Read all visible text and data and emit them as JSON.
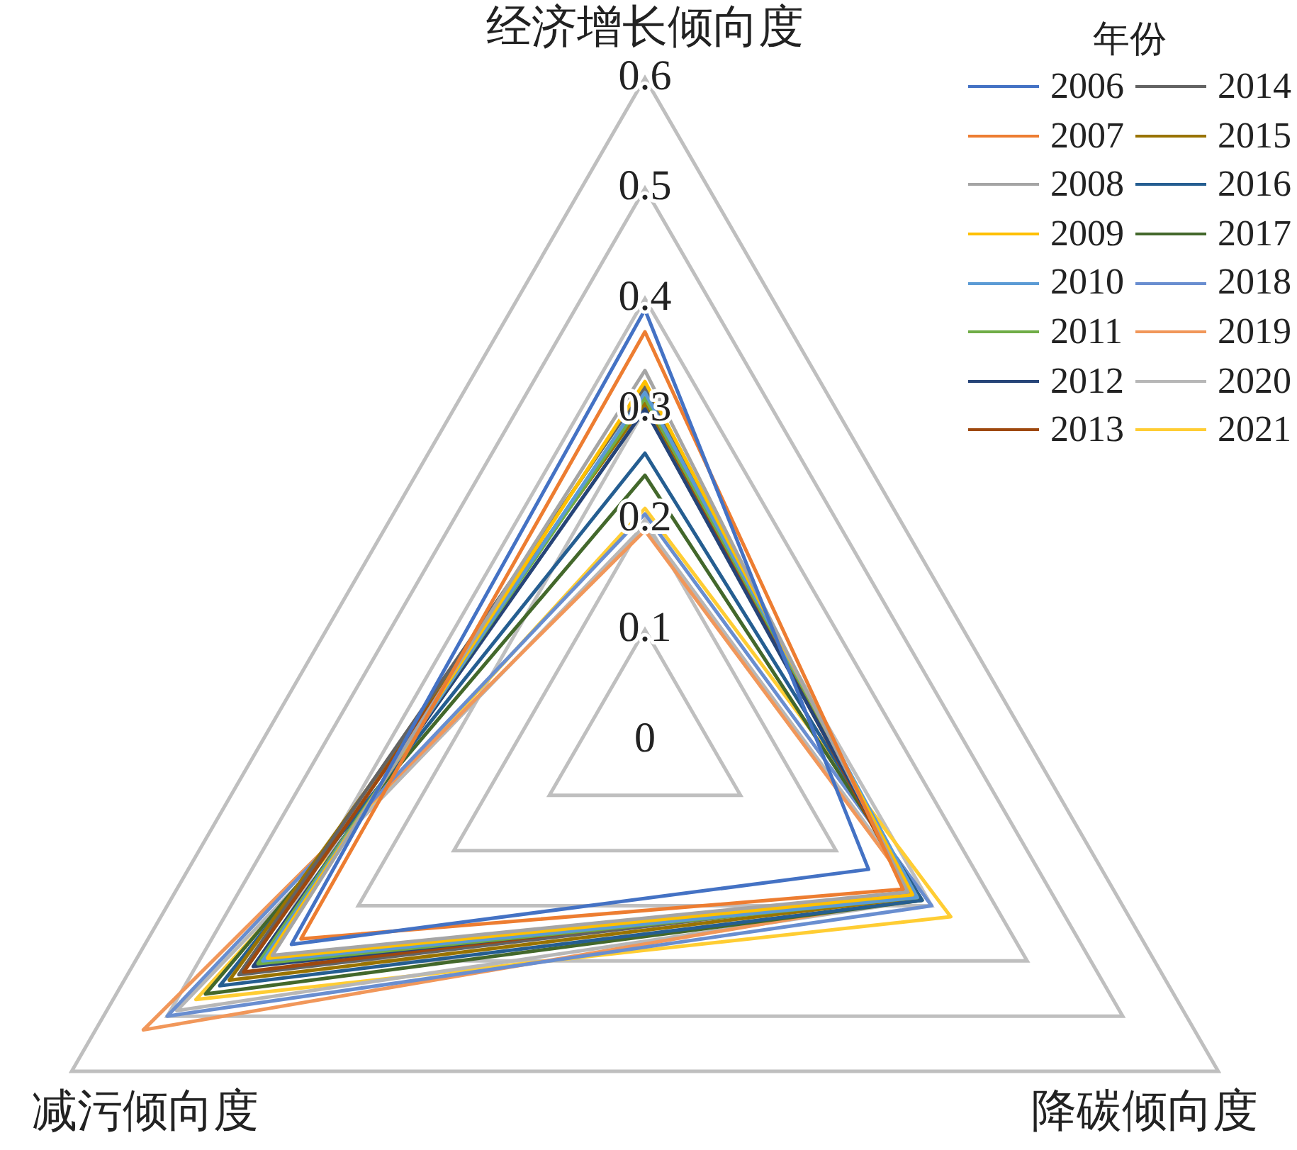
{
  "chart_data": {
    "type": "radar",
    "legend_title": "年份",
    "legend": "top right",
    "grid": true,
    "marker": "none",
    "categories": [
      "经济增长倾向度",
      "降碳倾向度",
      "减污倾向度"
    ],
    "ylim": [
      0,
      0.6
    ],
    "yticks": [
      0,
      0.1,
      0.2,
      0.3,
      0.4,
      0.5,
      0.6
    ],
    "series": [
      {
        "name": "2006",
        "color": "#4472c4",
        "values": [
          0.39,
          0.234,
          0.37
        ]
      },
      {
        "name": "2007",
        "color": "#ed7d31",
        "values": [
          0.37,
          0.27,
          0.36
        ]
      },
      {
        "name": "2008",
        "color": "#a5a5a5",
        "values": [
          0.335,
          0.275,
          0.39
        ]
      },
      {
        "name": "2009",
        "color": "#ffc000",
        "values": [
          0.325,
          0.28,
          0.395
        ]
      },
      {
        "name": "2010",
        "color": "#5b9bd5",
        "values": [
          0.315,
          0.285,
          0.4
        ]
      },
      {
        "name": "2011",
        "color": "#70ad47",
        "values": [
          0.31,
          0.285,
          0.405
        ]
      },
      {
        "name": "2012",
        "color": "#264478",
        "values": [
          0.3,
          0.28,
          0.41
        ]
      },
      {
        "name": "2013",
        "color": "#9e480e",
        "values": [
          0.31,
          0.275,
          0.42
        ]
      },
      {
        "name": "2014",
        "color": "#636363",
        "values": [
          0.32,
          0.28,
          0.425
        ]
      },
      {
        "name": "2015",
        "color": "#997300",
        "values": [
          0.305,
          0.285,
          0.435
        ]
      },
      {
        "name": "2016",
        "color": "#255e91",
        "values": [
          0.26,
          0.29,
          0.445
        ]
      },
      {
        "name": "2017",
        "color": "#43682b",
        "values": [
          0.24,
          0.29,
          0.46
        ]
      },
      {
        "name": "2018",
        "color": "#698ed0",
        "values": [
          0.205,
          0.3,
          0.5
        ]
      },
      {
        "name": "2019",
        "color": "#f1975a",
        "values": [
          0.19,
          0.285,
          0.525
        ]
      },
      {
        "name": "2020",
        "color": "#b7b7b7",
        "values": [
          0.195,
          0.29,
          0.49
        ]
      },
      {
        "name": "2021",
        "color": "#ffcd33",
        "values": [
          0.21,
          0.32,
          0.47
        ]
      }
    ]
  }
}
